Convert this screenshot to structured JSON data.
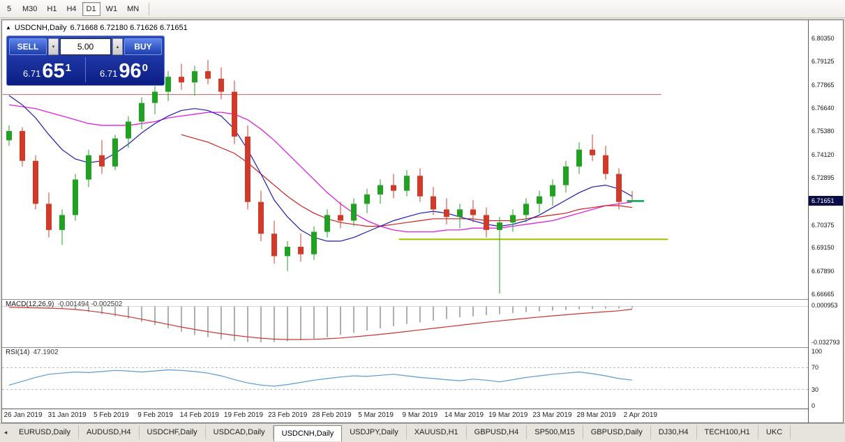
{
  "toolbar": {
    "timeframes": [
      "5",
      "M30",
      "H1",
      "H4",
      "D1",
      "W1",
      "MN"
    ],
    "active": "D1"
  },
  "icons": {
    "collapse": "▲",
    "caret_up": "▴",
    "caret_down": "▾",
    "tab_scroll_left": "◂"
  },
  "chart": {
    "title_symbol": "USDCNH,Daily",
    "title_ohlc": "6.71668 6.72180 6.71626 6.71651"
  },
  "trade_panel": {
    "sell_label": "SELL",
    "buy_label": "BUY",
    "volume": "5.00",
    "bid": {
      "prefix": "6.71",
      "big": "65",
      "sup": "1"
    },
    "ask": {
      "prefix": "6.71",
      "big": "96",
      "sup": "0"
    }
  },
  "price_axis": {
    "ticks": [
      6.8035,
      6.79125,
      6.77865,
      6.7664,
      6.7538,
      6.7412,
      6.72895,
      6.70375,
      6.6915,
      6.6789,
      6.66665
    ],
    "tag": "6.71651"
  },
  "macd_panel": {
    "title": "MACD(12,26,9)",
    "values": "-0.001494 -0.002502",
    "axis_ticks": [
      0.000953,
      -0.032793
    ]
  },
  "rsi_panel": {
    "title": "RSI(14)",
    "value": "47.1902",
    "axis_ticks": [
      100,
      70,
      30,
      0
    ]
  },
  "x_axis_dates": [
    "26 Jan 2019",
    "31 Jan 2019",
    "5 Feb 2019",
    "9 Feb 2019",
    "14 Feb 2019",
    "19 Feb 2019",
    "23 Feb 2019",
    "28 Feb 2019",
    "5 Mar 2019",
    "9 Mar 2019",
    "14 Mar 2019",
    "19 Mar 2019",
    "23 Mar 2019",
    "28 Mar 2019",
    "2 Apr 2019"
  ],
  "bottom_tabs": {
    "items": [
      "EURUSD,Daily",
      "AUDUSD,H4",
      "USDCHF,Daily",
      "USDCAD,Daily",
      "USDCNH,Daily",
      "USDJPY,Daily",
      "XAUUSD,H1",
      "GBPUSD,H4",
      "SP500,M15",
      "GBPUSD,Daily",
      "DJ30,H4",
      "TECH100,H1",
      "UKC"
    ],
    "active_index": 4
  },
  "chart_data": {
    "type": "candlestick",
    "symbol": "USDCNH",
    "timeframe": "Daily",
    "ylim": [
      6.664,
      6.8133
    ],
    "colors": {
      "bull": "#21a121",
      "bear": "#d13a28",
      "ma_fast": "#1a1ab8",
      "ma_mid": "#e020e0",
      "ma_slow": "#d02020",
      "macd_hist": "#9a9a9a",
      "macd_signal": "#cc3333",
      "rsi": "#5a9bd4",
      "hline_red": "#c06060",
      "hline_olive": "#9ec400",
      "price_tag_bg": "#0c0c46",
      "marker_green": "#00a84f"
    },
    "candles": [
      [
        6.749,
        6.757,
        6.746,
        6.754
      ],
      [
        6.754,
        6.756,
        6.735,
        6.738
      ],
      [
        6.738,
        6.741,
        6.712,
        6.715
      ],
      [
        6.715,
        6.721,
        6.697,
        6.701
      ],
      [
        6.701,
        6.712,
        6.693,
        6.709
      ],
      [
        6.709,
        6.731,
        6.706,
        6.728
      ],
      [
        6.728,
        6.744,
        6.724,
        6.741
      ],
      [
        6.741,
        6.749,
        6.731,
        6.735
      ],
      [
        6.735,
        6.752,
        6.733,
        6.75
      ],
      [
        6.75,
        6.762,
        6.745,
        6.759
      ],
      [
        6.759,
        6.772,
        6.755,
        6.769
      ],
      [
        6.769,
        6.778,
        6.763,
        6.775
      ],
      [
        6.775,
        6.786,
        6.77,
        6.783
      ],
      [
        6.783,
        6.79,
        6.776,
        6.78
      ],
      [
        6.78,
        6.789,
        6.773,
        6.786
      ],
      [
        6.786,
        6.792,
        6.779,
        6.782
      ],
      [
        6.782,
        6.788,
        6.771,
        6.775
      ],
      [
        6.775,
        6.781,
        6.747,
        6.751
      ],
      [
        6.751,
        6.757,
        6.712,
        6.716
      ],
      [
        6.716,
        6.722,
        6.695,
        6.699
      ],
      [
        6.699,
        6.706,
        6.683,
        6.687
      ],
      [
        6.687,
        6.695,
        6.679,
        6.692
      ],
      [
        6.692,
        6.699,
        6.684,
        6.688
      ],
      [
        6.688,
        6.703,
        6.685,
        6.7
      ],
      [
        6.7,
        6.712,
        6.697,
        6.709
      ],
      [
        6.709,
        6.716,
        6.702,
        6.706
      ],
      [
        6.706,
        6.718,
        6.703,
        6.715
      ],
      [
        6.715,
        6.723,
        6.71,
        6.72
      ],
      [
        6.72,
        6.728,
        6.715,
        6.725
      ],
      [
        6.725,
        6.731,
        6.718,
        6.722
      ],
      [
        6.722,
        6.733,
        6.719,
        6.73
      ],
      [
        6.73,
        6.734,
        6.716,
        6.719
      ],
      [
        6.719,
        6.724,
        6.709,
        6.712
      ],
      [
        6.712,
        6.718,
        6.704,
        6.708
      ],
      [
        6.708,
        6.715,
        6.702,
        6.712
      ],
      [
        6.712,
        6.717,
        6.705,
        6.709
      ],
      [
        6.709,
        6.713,
        6.697,
        6.701
      ],
      [
        6.701,
        6.708,
        6.667,
        6.705
      ],
      [
        6.705,
        6.712,
        6.7,
        6.709
      ],
      [
        6.709,
        6.718,
        6.705,
        6.715
      ],
      [
        6.715,
        6.722,
        6.71,
        6.719
      ],
      [
        6.719,
        6.728,
        6.714,
        6.725
      ],
      [
        6.725,
        6.738,
        6.721,
        6.735
      ],
      [
        6.735,
        6.748,
        6.731,
        6.744
      ],
      [
        6.744,
        6.752,
        6.738,
        6.741
      ],
      [
        6.741,
        6.746,
        6.728,
        6.731
      ],
      [
        6.731,
        6.734,
        6.712,
        6.716
      ],
      [
        6.71668,
        6.7218,
        6.71626,
        6.71651
      ]
    ],
    "overlays": {
      "ma_fast": [
        6.773,
        6.768,
        6.761,
        6.752,
        6.744,
        6.739,
        6.737,
        6.738,
        6.742,
        6.747,
        6.753,
        6.758,
        6.762,
        6.765,
        6.766,
        6.765,
        6.762,
        6.755,
        6.744,
        6.731,
        6.717,
        6.708,
        6.701,
        6.697,
        6.695,
        6.695,
        6.697,
        6.7,
        6.703,
        6.706,
        6.708,
        6.71,
        6.711,
        6.71,
        6.708,
        6.706,
        6.704,
        6.703,
        6.704,
        6.706,
        6.709,
        6.713,
        6.717,
        6.721,
        6.724,
        6.725,
        6.723,
        6.719
      ],
      "ma_mid": [
        6.768,
        6.767,
        6.766,
        6.764,
        6.762,
        6.76,
        6.758,
        6.757,
        6.757,
        6.757,
        6.758,
        6.759,
        6.761,
        6.762,
        6.763,
        6.764,
        6.764,
        6.763,
        6.76,
        6.755,
        6.749,
        6.742,
        6.735,
        6.728,
        6.721,
        6.715,
        6.71,
        6.706,
        6.703,
        6.701,
        6.7,
        6.7,
        6.7,
        6.701,
        6.701,
        6.702,
        6.702,
        6.702,
        6.703,
        6.704,
        6.705,
        6.706,
        6.708,
        6.71,
        6.712,
        6.714,
        6.715,
        6.716
      ],
      "ma_slow": [
        null,
        null,
        null,
        null,
        null,
        null,
        null,
        null,
        null,
        null,
        null,
        null,
        null,
        6.752,
        6.75,
        6.748,
        6.745,
        6.742,
        6.737,
        6.731,
        6.725,
        6.719,
        6.714,
        6.71,
        6.707,
        6.705,
        6.704,
        6.703,
        6.703,
        6.704,
        6.705,
        6.706,
        6.707,
        6.707,
        6.707,
        6.707,
        6.706,
        6.706,
        6.706,
        6.707,
        6.708,
        6.709,
        6.71,
        6.712,
        6.713,
        6.714,
        6.714,
        6.713
      ]
    },
    "hlines": [
      {
        "price": 6.7735,
        "color": "#c06060",
        "width": 1,
        "from_index": -0.5,
        "to_index": 49.2
      },
      {
        "price": 6.696,
        "color": "#9ec400",
        "width": 2,
        "from_index": 29.4,
        "to_index": 49.7
      }
    ],
    "last_price_marker": {
      "price": 6.71651,
      "color": "#00a84f"
    },
    "macd": {
      "ylim": [
        -0.0372,
        0.0067
      ],
      "hist": [
        0.0009,
        0.0004,
        -0.0001,
        -0.0008,
        -0.0018,
        -0.003,
        -0.005,
        -0.007,
        -0.009,
        -0.011,
        -0.014,
        -0.017,
        -0.02,
        -0.023,
        -0.026,
        -0.028,
        -0.03,
        -0.0315,
        -0.0325,
        -0.0328,
        -0.0325,
        -0.0318,
        -0.0308,
        -0.0295,
        -0.028,
        -0.026,
        -0.024,
        -0.022,
        -0.02,
        -0.018,
        -0.016,
        -0.0145,
        -0.013,
        -0.0115,
        -0.01,
        -0.009,
        -0.008,
        -0.007,
        -0.006,
        -0.0052,
        -0.0045,
        -0.0038,
        -0.0032,
        -0.0027,
        -0.0023,
        -0.002,
        -0.0017,
        -0.0015
      ],
      "signal": [
        -0.0008,
        -0.001,
        -0.0013,
        -0.0016,
        -0.002,
        -0.0028,
        -0.004,
        -0.0056,
        -0.0074,
        -0.0094,
        -0.0116,
        -0.014,
        -0.0164,
        -0.0188,
        -0.021,
        -0.023,
        -0.0248,
        -0.0264,
        -0.0278,
        -0.029,
        -0.0298,
        -0.0302,
        -0.0302,
        -0.03,
        -0.0295,
        -0.0288,
        -0.0278,
        -0.0267,
        -0.0255,
        -0.0242,
        -0.0228,
        -0.0214,
        -0.02,
        -0.0186,
        -0.0172,
        -0.0158,
        -0.0145,
        -0.0132,
        -0.012,
        -0.0108,
        -0.0097,
        -0.0086,
        -0.0076,
        -0.0066,
        -0.0057,
        -0.0048,
        -0.004,
        -0.0025
      ]
    },
    "rsi": {
      "values": [
        38,
        45,
        52,
        58,
        60,
        62,
        61,
        63,
        65,
        64,
        62,
        64,
        66,
        65,
        63,
        60,
        55,
        48,
        42,
        38,
        36,
        39,
        43,
        47,
        50,
        53,
        55,
        54,
        56,
        58,
        55,
        52,
        50,
        48,
        46,
        49,
        47,
        44,
        48,
        52,
        55,
        58,
        60,
        62,
        59,
        55,
        50,
        47.19
      ],
      "levels_dashed": [
        70,
        30
      ]
    }
  }
}
